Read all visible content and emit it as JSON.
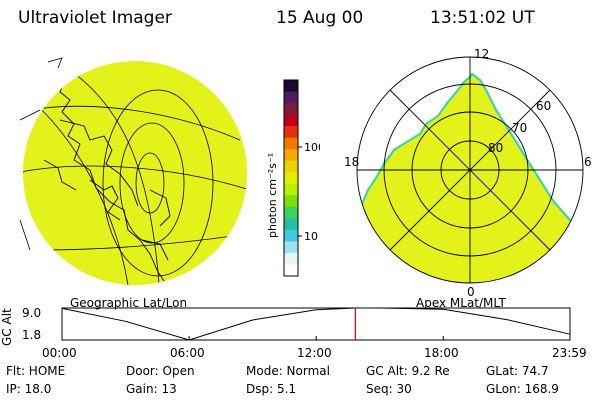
{
  "header": {
    "instrument": "Ultraviolet Imager",
    "date": "15 Aug 00",
    "time": "13:51:02 UT"
  },
  "colorbar": {
    "label": "photon cm⁻²s⁻¹",
    "ticks": [
      "100",
      "10"
    ],
    "colors": [
      "#1a0a2e",
      "#4b1d5e",
      "#7a1f3a",
      "#c0001a",
      "#e83010",
      "#f07a00",
      "#f5a800",
      "#f0d000",
      "#e0f000",
      "#b8f000",
      "#7ce000",
      "#40d060",
      "#20c0a0",
      "#40c8e0",
      "#a0e0f0",
      "#e8f4f8",
      "#ffffff"
    ]
  },
  "left_map": {
    "caption": "Geographic Lat/Lon",
    "fill_color": "#e4f21c"
  },
  "right_map": {
    "caption": "Apex MLat/MLT",
    "fill_color": "#e4f21c",
    "edge_color": "#3fd4a8",
    "mlt_labels": {
      "top": "12",
      "left": "18",
      "right": "6",
      "bottom": "0"
    },
    "mlat_labels": [
      "60",
      "70",
      "80"
    ]
  },
  "alt_plot": {
    "ylabel": "GC Alt",
    "yticks": [
      "9.0",
      "1.8"
    ],
    "xticks": [
      "00:00",
      "06:00",
      "12:00",
      "18:00",
      "23:59"
    ],
    "marker_color": "#dd0000"
  },
  "chart_data": {
    "type": "line",
    "title": "",
    "xlabel": "",
    "ylabel": "GC Alt",
    "ylim": [
      1.8,
      9.0
    ],
    "x": [
      "00:00",
      "03:00",
      "06:00",
      "09:00",
      "12:00",
      "13:51",
      "15:00",
      "18:00",
      "21:00",
      "23:59"
    ],
    "series": [
      {
        "values": [
          8.9,
          6.0,
          1.8,
          6.3,
          8.6,
          9.2,
          9.3,
          8.7,
          6.4,
          3.1
        ]
      }
    ],
    "marker_x": "13:51"
  },
  "status": {
    "flt": "Flt: HOME",
    "door": "Door: Open",
    "mode": "Mode: Normal",
    "gcalt": "GC Alt: 9.2 Re",
    "glat": "GLat:  74.7",
    "ip": "IP: 18.0",
    "gain": "Gain: 13",
    "dsp": "Dsp:    5.1",
    "seq": "Seq: 30",
    "glon": "GLon: 168.9"
  }
}
